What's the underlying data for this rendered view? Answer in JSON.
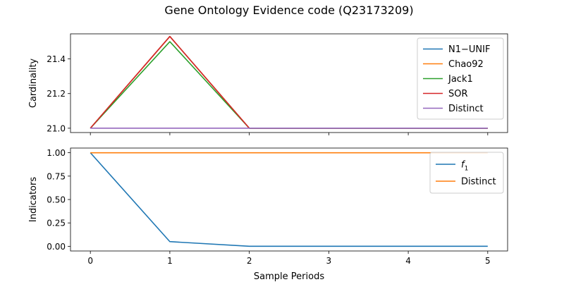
{
  "chart_data": {
    "title": "Gene Ontology Evidence code (Q23173209)",
    "xlabel": "Sample Periods",
    "x": [
      0,
      1,
      2,
      3,
      4,
      5
    ],
    "x_ticks": [
      "0",
      "1",
      "2",
      "3",
      "4",
      "5"
    ],
    "xlim": [
      -0.25,
      5.25
    ],
    "panels": [
      {
        "type": "line",
        "ylabel": "Cardinality",
        "ylim": [
          20.975,
          21.545
        ],
        "y_ticks": [
          21.0,
          21.2,
          21.4
        ],
        "y_tick_labels": [
          "21.0",
          "21.2",
          "21.4"
        ],
        "legend_position": "top-right",
        "series": [
          {
            "name": "N1−UNIF",
            "color": "#1f77b4",
            "values": [
              21.0,
              21.53,
              21.0,
              21.0,
              21.0,
              21.0
            ]
          },
          {
            "name": "Chao92",
            "color": "#ff7f0e",
            "values": [
              21.0,
              21.53,
              21.0,
              21.0,
              21.0,
              21.0
            ]
          },
          {
            "name": "Jack1",
            "color": "#2ca02c",
            "values": [
              21.0,
              21.5,
              21.0,
              21.0,
              21.0,
              21.0
            ]
          },
          {
            "name": "SOR",
            "color": "#d62728",
            "values": [
              21.0,
              21.53,
              21.0,
              21.0,
              21.0,
              21.0
            ]
          },
          {
            "name": "Distinct",
            "color": "#9467bd",
            "values": [
              21.0,
              21.0,
              21.0,
              21.0,
              21.0,
              21.0
            ]
          }
        ]
      },
      {
        "type": "line",
        "ylabel": "Indicators",
        "ylim": [
          -0.05,
          1.05
        ],
        "y_ticks": [
          0.0,
          0.25,
          0.5,
          0.75,
          1.0
        ],
        "y_tick_labels": [
          "0.00",
          "0.25",
          "0.50",
          "0.75",
          "1.00"
        ],
        "legend_position": "top-right",
        "series": [
          {
            "name": "f1",
            "name_main": "f",
            "name_sub": "1",
            "color": "#1f77b4",
            "values": [
              1.0,
              0.05,
              0.0,
              0.0,
              0.0,
              0.0
            ]
          },
          {
            "name": "Distinct",
            "color": "#ff7f0e",
            "values": [
              1.0,
              1.0,
              1.0,
              1.0,
              1.0,
              1.0
            ]
          }
        ]
      }
    ]
  }
}
